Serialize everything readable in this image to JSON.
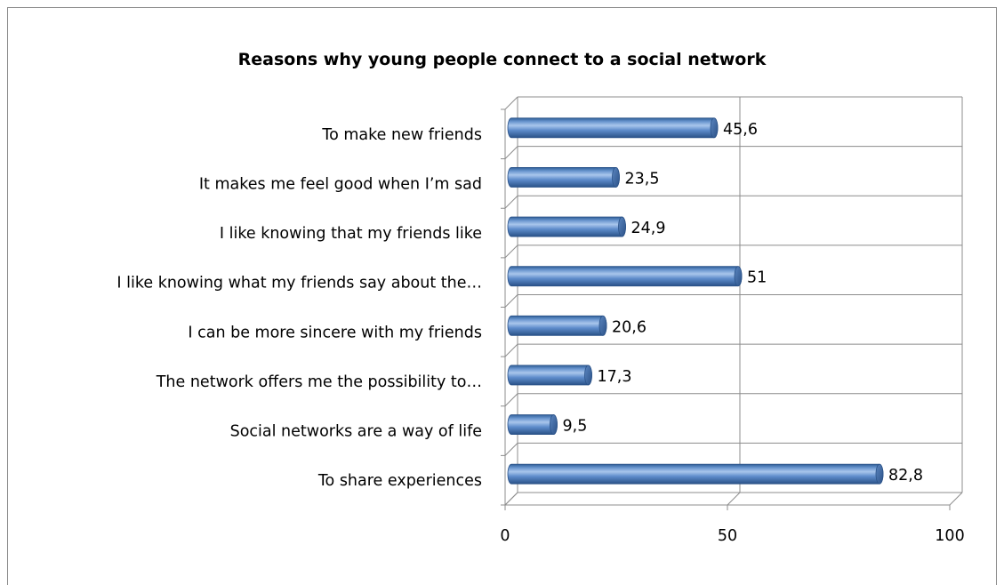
{
  "chart_data": {
    "type": "bar",
    "orientation": "horizontal",
    "style": "3d-cylinder",
    "title": "Reasons why young people connect to a social network",
    "categories": [
      "To make new friends",
      "It makes me feel good when I’m sad",
      "I like knowing that my friends like",
      "I like knowing what my friends say about the…",
      "I can be more sincere with my friends",
      "The network offers me the possibility to…",
      "Social networks are a way of life",
      "To share experiences"
    ],
    "values": [
      45.6,
      23.5,
      24.9,
      51,
      20.6,
      17.3,
      9.5,
      82.8
    ],
    "value_labels": [
      "45,6",
      "23,5",
      "24,9",
      "51",
      "20,6",
      "17,3",
      "9,5",
      "82,8"
    ],
    "xlim": [
      0,
      100
    ],
    "xticks": [
      0,
      50,
      100
    ],
    "xtick_labels": [
      "0",
      "50",
      "100"
    ],
    "grid": true,
    "legend": "none",
    "colors": {
      "bar": "#4f81bd",
      "bar_dark": "#2c5a92",
      "bar_light": "#9fbde6",
      "grid": "#8c8c8c",
      "frame": "#8a8a8a"
    }
  }
}
